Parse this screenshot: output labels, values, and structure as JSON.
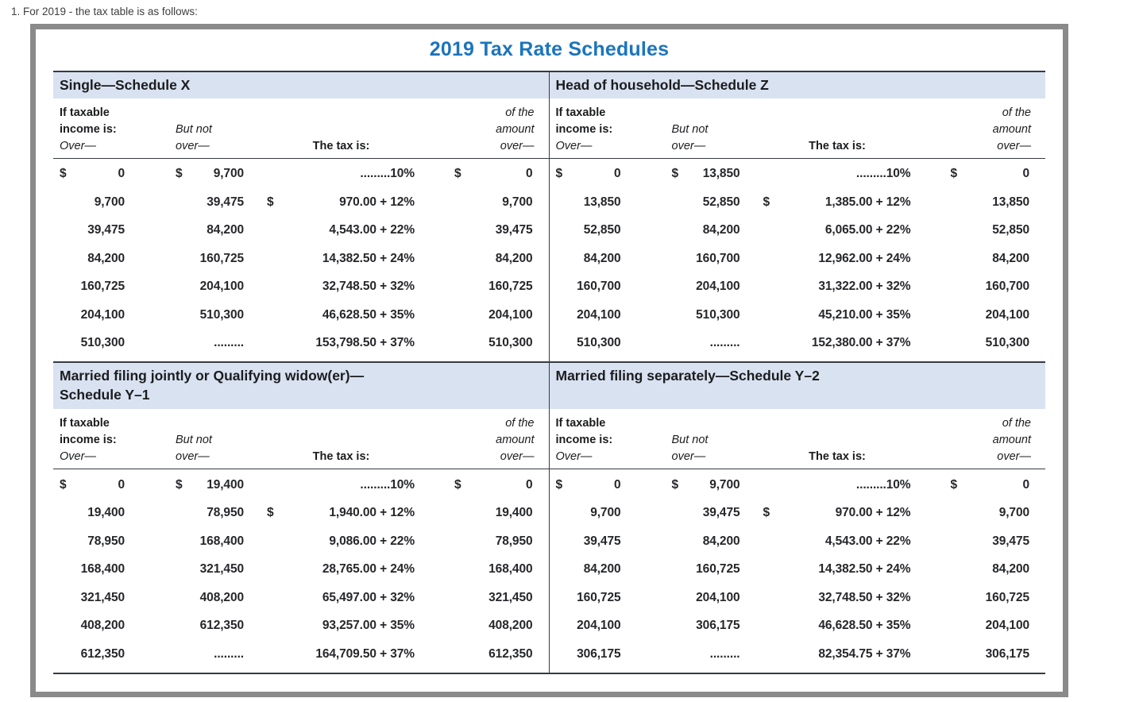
{
  "page": {
    "caption": "1. For 2019 - the tax table is as follows:"
  },
  "title": "2019 Tax Rate Schedules",
  "colors": {
    "title_blue": "#1b75bc",
    "band_blue": "#d9e2f1",
    "rule_dark": "#363a42",
    "frame_gray": "#8a8a8a"
  },
  "headers": {
    "col1": [
      "If taxable",
      "income is:",
      "Over—"
    ],
    "col2": [
      "But not",
      "over—"
    ],
    "col3": "The tax is:",
    "col4": [
      "of the",
      "amount",
      "over—"
    ]
  },
  "schedules": [
    {
      "id": "single",
      "header_lines": [
        "Single—Schedule X",
        ""
      ],
      "rows": [
        {
          "s1": "$",
          "v1": "0",
          "s2": "$",
          "v2": "9,700",
          "s3": "",
          "v3": ".........10%",
          "s4": "$",
          "v4": "0"
        },
        {
          "s1": "",
          "v1": "9,700",
          "s2": "",
          "v2": "39,475",
          "s3": "$",
          "v3": "970.00 + 12%",
          "s4": "",
          "v4": "9,700"
        },
        {
          "s1": "",
          "v1": "39,475",
          "s2": "",
          "v2": "84,200",
          "s3": "",
          "v3": "4,543.00 + 22%",
          "s4": "",
          "v4": "39,475"
        },
        {
          "s1": "",
          "v1": "84,200",
          "s2": "",
          "v2": "160,725",
          "s3": "",
          "v3": "14,382.50 + 24%",
          "s4": "",
          "v4": "84,200"
        },
        {
          "s1": "",
          "v1": "160,725",
          "s2": "",
          "v2": "204,100",
          "s3": "",
          "v3": "32,748.50 + 32%",
          "s4": "",
          "v4": "160,725"
        },
        {
          "s1": "",
          "v1": "204,100",
          "s2": "",
          "v2": "510,300",
          "s3": "",
          "v3": "46,628.50 + 35%",
          "s4": "",
          "v4": "204,100"
        },
        {
          "s1": "",
          "v1": "510,300",
          "s2": "",
          "v2": ".........",
          "s3": "",
          "v3": "153,798.50 + 37%",
          "s4": "",
          "v4": "510,300"
        }
      ]
    },
    {
      "id": "head-of-household",
      "header_lines": [
        "Head of household—Schedule Z",
        ""
      ],
      "rows": [
        {
          "s1": "$",
          "v1": "0",
          "s2": "$",
          "v2": "13,850",
          "s3": "",
          "v3": ".........10%",
          "s4": "$",
          "v4": "0"
        },
        {
          "s1": "",
          "v1": "13,850",
          "s2": "",
          "v2": "52,850",
          "s3": "$",
          "v3": "1,385.00 + 12%",
          "s4": "",
          "v4": "13,850"
        },
        {
          "s1": "",
          "v1": "52,850",
          "s2": "",
          "v2": "84,200",
          "s3": "",
          "v3": "6,065.00 + 22%",
          "s4": "",
          "v4": "52,850"
        },
        {
          "s1": "",
          "v1": "84,200",
          "s2": "",
          "v2": "160,700",
          "s3": "",
          "v3": "12,962.00 + 24%",
          "s4": "",
          "v4": "84,200"
        },
        {
          "s1": "",
          "v1": "160,700",
          "s2": "",
          "v2": "204,100",
          "s3": "",
          "v3": "31,322.00 + 32%",
          "s4": "",
          "v4": "160,700"
        },
        {
          "s1": "",
          "v1": "204,100",
          "s2": "",
          "v2": "510,300",
          "s3": "",
          "v3": "45,210.00 + 35%",
          "s4": "",
          "v4": "204,100"
        },
        {
          "s1": "",
          "v1": "510,300",
          "s2": "",
          "v2": ".........",
          "s3": "",
          "v3": "152,380.00 + 37%",
          "s4": "",
          "v4": "510,300"
        }
      ]
    },
    {
      "id": "married-filing-jointly",
      "header_lines": [
        "Married filing jointly or Qualifying widow(er)—",
        "Schedule Y–1"
      ],
      "rows": [
        {
          "s1": "$",
          "v1": "0",
          "s2": "$",
          "v2": "19,400",
          "s3": "",
          "v3": ".........10%",
          "s4": "$",
          "v4": "0"
        },
        {
          "s1": "",
          "v1": "19,400",
          "s2": "",
          "v2": "78,950",
          "s3": "$",
          "v3": "1,940.00 + 12%",
          "s4": "",
          "v4": "19,400"
        },
        {
          "s1": "",
          "v1": "78,950",
          "s2": "",
          "v2": "168,400",
          "s3": "",
          "v3": "9,086.00 + 22%",
          "s4": "",
          "v4": "78,950"
        },
        {
          "s1": "",
          "v1": "168,400",
          "s2": "",
          "v2": "321,450",
          "s3": "",
          "v3": "28,765.00 + 24%",
          "s4": "",
          "v4": "168,400"
        },
        {
          "s1": "",
          "v1": "321,450",
          "s2": "",
          "v2": "408,200",
          "s3": "",
          "v3": "65,497.00 + 32%",
          "s4": "",
          "v4": "321,450"
        },
        {
          "s1": "",
          "v1": "408,200",
          "s2": "",
          "v2": "612,350",
          "s3": "",
          "v3": "93,257.00 + 35%",
          "s4": "",
          "v4": "408,200"
        },
        {
          "s1": "",
          "v1": "612,350",
          "s2": "",
          "v2": ".........",
          "s3": "",
          "v3": "164,709.50 + 37%",
          "s4": "",
          "v4": "612,350"
        }
      ]
    },
    {
      "id": "married-filing-separately",
      "header_lines": [
        "Married filing separately—Schedule Y–2",
        ""
      ],
      "rows": [
        {
          "s1": "$",
          "v1": "0",
          "s2": "$",
          "v2": "9,700",
          "s3": "",
          "v3": ".........10%",
          "s4": "$",
          "v4": "0"
        },
        {
          "s1": "",
          "v1": "9,700",
          "s2": "",
          "v2": "39,475",
          "s3": "$",
          "v3": "970.00 + 12%",
          "s4": "",
          "v4": "9,700"
        },
        {
          "s1": "",
          "v1": "39,475",
          "s2": "",
          "v2": "84,200",
          "s3": "",
          "v3": "4,543.00 + 22%",
          "s4": "",
          "v4": "39,475"
        },
        {
          "s1": "",
          "v1": "84,200",
          "s2": "",
          "v2": "160,725",
          "s3": "",
          "v3": "14,382.50 + 24%",
          "s4": "",
          "v4": "84,200"
        },
        {
          "s1": "",
          "v1": "160,725",
          "s2": "",
          "v2": "204,100",
          "s3": "",
          "v3": "32,748.50 + 32%",
          "s4": "",
          "v4": "160,725"
        },
        {
          "s1": "",
          "v1": "204,100",
          "s2": "",
          "v2": "306,175",
          "s3": "",
          "v3": "46,628.50 + 35%",
          "s4": "",
          "v4": "204,100"
        },
        {
          "s1": "",
          "v1": "306,175",
          "s2": "",
          "v2": ".........",
          "s3": "",
          "v3": "82,354.75 + 37%",
          "s4": "",
          "v4": "306,175"
        }
      ]
    }
  ]
}
